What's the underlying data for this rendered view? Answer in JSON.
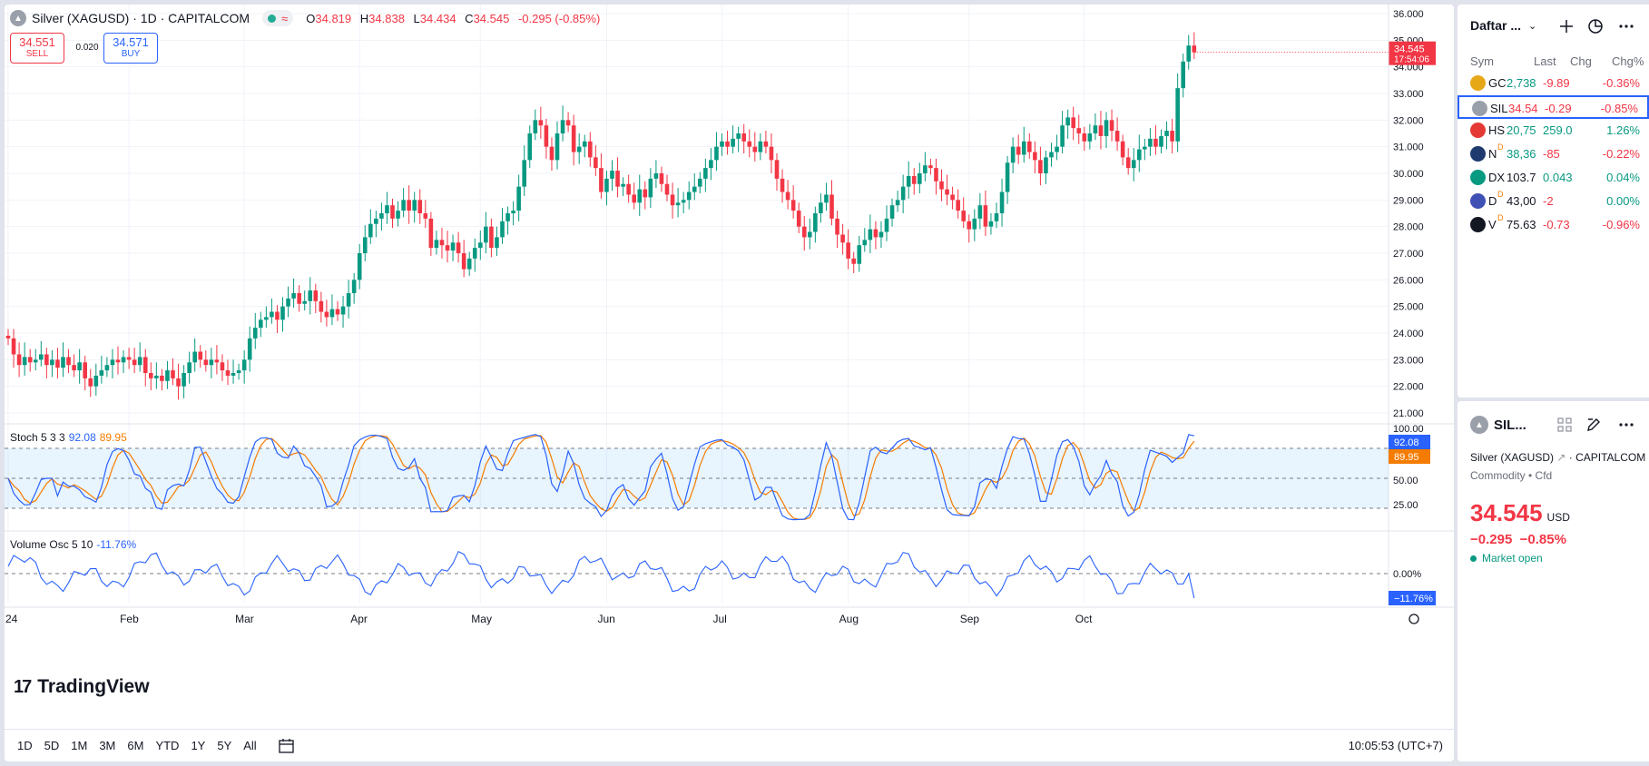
{
  "symbol": {
    "title": "Silver (XAGUSD) · 1D · CAPITALCOM",
    "ohlc": {
      "o_label": "O",
      "o": "34.819",
      "h_label": "H",
      "h": "34.838",
      "l_label": "L",
      "l": "34.434",
      "c_label": "C",
      "c": "34.545",
      "change": "-0.295 (-0.85%)"
    },
    "sell_price": "34.551",
    "sell_label": "SELL",
    "buy_price": "34.571",
    "buy_label": "BUY",
    "spread": "0.020",
    "last_price_tag": "34.545",
    "countdown": "17:54:06"
  },
  "indicators": {
    "stoch_label": "Stoch 5 3 3",
    "stoch_k": "92.08",
    "stoch_d": "89.95",
    "volosc_label": "Volume Osc 5 10",
    "volosc_value": "-11.76%",
    "volosc_zero": "0.00%",
    "volosc_tag": "−11.76%"
  },
  "branding": {
    "logo_text": "TradingView"
  },
  "toolbar": {
    "ranges": [
      "1D",
      "5D",
      "1M",
      "3M",
      "6M",
      "YTD",
      "1Y",
      "5Y",
      "All"
    ],
    "clock": "10:05:53 (UTC+7)"
  },
  "watchlist": {
    "title": "Daftar ...",
    "columns": {
      "sym": "Sym",
      "last": "Last",
      "chg": "Chg",
      "chgp": "Chg%"
    },
    "rows": [
      {
        "sym": "GC",
        "last": "2,738",
        "chg": "-9.89",
        "chgp": "-0.36%",
        "icon_color": "#e6a817",
        "icon": "gold-icon",
        "dir": "up"
      },
      {
        "sym": "SIL",
        "last": "34.54",
        "chg": "-0.29",
        "chgp": "-0.85%",
        "icon_color": "#9aa0aa",
        "icon": "silver-icon",
        "dir": "dn",
        "selected": true
      },
      {
        "sym": "HS",
        "last": "20,75",
        "chg": "259.0",
        "chgp": "1.26%",
        "icon_color": "#e53935",
        "icon": "hang-seng-icon",
        "dir": "up"
      },
      {
        "sym": "N",
        "last": "38,36",
        "chg": "-85",
        "chgp": "-0.22%",
        "icon_color": "#1e3a6e",
        "icon": "nikkei-icon",
        "dir": "up",
        "badge": "D"
      },
      {
        "sym": "DX",
        "last": "103.7",
        "chg": "0.043",
        "chgp": "0.04%",
        "icon_color": "#089981",
        "icon": "dollar-index-icon",
        "dir": "neu"
      },
      {
        "sym": "D",
        "last": "43,00",
        "chg": "-2",
        "chgp": "0.00%",
        "icon_color": "#3f51b5",
        "icon": "us-flag-icon",
        "dir": "neu",
        "badge": "D"
      },
      {
        "sym": "V",
        "last": "75.63",
        "chg": "-0.73",
        "chgp": "-0.96%",
        "icon_color": "#131722",
        "icon": "oil-drop-icon",
        "dir": "neu",
        "badge": "D"
      }
    ]
  },
  "details": {
    "short": "SIL...",
    "name": "Silver (XAGUSD)",
    "exchange": "CAPITALCOM",
    "category": "Commodity • Cfd",
    "price": "34.545",
    "currency": "USD",
    "change": "−0.295",
    "change_pct": "−0.85%",
    "status": "Market open"
  },
  "chart_data": {
    "type": "candlestick",
    "y_range": [
      20.5,
      36.2
    ],
    "price_ticks": [
      "36.000",
      "35.000",
      "34.000",
      "33.000",
      "32.000",
      "31.000",
      "30.000",
      "29.000",
      "28.000",
      "27.000",
      "26.000",
      "25.000",
      "24.000",
      "23.000",
      "22.000",
      "21.000"
    ],
    "stoch_ticks": [
      "100.00",
      "75.00",
      "50.00",
      "25.00"
    ],
    "x_labels": [
      {
        "label": "24",
        "index": 0
      },
      {
        "label": "Feb",
        "index": 22
      },
      {
        "label": "Mar",
        "index": 43
      },
      {
        "label": "Apr",
        "index": 64
      },
      {
        "label": "May",
        "index": 86
      },
      {
        "label": "Jun",
        "index": 109
      },
      {
        "label": "Jul",
        "index": 130
      },
      {
        "label": "Aug",
        "index": 153
      },
      {
        "label": "Sep",
        "index": 175
      },
      {
        "label": "Oct",
        "index": 196
      }
    ],
    "close": [
      23.8,
      23.2,
      22.8,
      23.1,
      22.9,
      23.0,
      23.2,
      22.8,
      23.0,
      22.7,
      23.1,
      22.8,
      22.6,
      22.9,
      22.3,
      22.0,
      22.4,
      22.6,
      22.8,
      23.0,
      22.9,
      23.1,
      23.0,
      22.8,
      23.1,
      22.5,
      22.3,
      22.4,
      22.2,
      22.6,
      22.3,
      22.0,
      22.5,
      22.9,
      23.3,
      23.0,
      22.8,
      23.0,
      22.9,
      22.6,
      22.4,
      22.5,
      22.6,
      23.0,
      23.8,
      24.2,
      24.5,
      24.6,
      24.8,
      24.5,
      25.0,
      25.3,
      25.5,
      25.1,
      25.2,
      25.6,
      25.2,
      24.8,
      24.6,
      24.9,
      24.7,
      25.0,
      25.5,
      26.0,
      27.0,
      27.6,
      28.1,
      28.3,
      28.5,
      28.8,
      28.3,
      28.6,
      29.0,
      28.6,
      29.0,
      28.5,
      28.3,
      27.2,
      27.5,
      27.3,
      27.1,
      27.4,
      27.0,
      26.4,
      26.8,
      27.2,
      27.4,
      28.0,
      27.2,
      27.6,
      28.2,
      28.5,
      28.6,
      29.5,
      30.5,
      31.5,
      32.0,
      31.8,
      31.0,
      30.5,
      31.5,
      32.0,
      31.8,
      30.8,
      31.0,
      31.2,
      30.6,
      30.2,
      29.3,
      29.8,
      30.1,
      29.5,
      29.6,
      29.2,
      28.9,
      29.4,
      29.1,
      29.8,
      30.0,
      29.6,
      29.2,
      28.8,
      28.9,
      29.0,
      29.3,
      29.5,
      29.8,
      30.2,
      30.5,
      31.0,
      31.2,
      31.0,
      31.3,
      31.5,
      31.2,
      31.0,
      30.8,
      31.2,
      31.0,
      30.5,
      29.8,
      29.3,
      29.0,
      28.6,
      28.0,
      27.6,
      27.8,
      28.5,
      28.9,
      29.2,
      28.3,
      27.7,
      27.4,
      26.8,
      26.6,
      27.3,
      27.5,
      27.9,
      27.6,
      27.8,
      28.3,
      28.8,
      29.0,
      29.5,
      29.9,
      29.6,
      30.0,
      30.3,
      30.2,
      29.7,
      29.4,
      29.2,
      29.0,
      28.6,
      28.2,
      27.9,
      28.3,
      28.8,
      28.0,
      28.2,
      28.5,
      29.3,
      30.4,
      31.0,
      30.7,
      31.2,
      30.8,
      30.5,
      30.0,
      30.6,
      30.8,
      31.0,
      31.8,
      32.1,
      31.7,
      31.5,
      31.2,
      31.5,
      31.8,
      31.4,
      32.0,
      31.6,
      31.2,
      30.6,
      30.2,
      30.5,
      30.9,
      31.0,
      31.3,
      31.0,
      31.4,
      31.6,
      31.2,
      33.2,
      34.2,
      34.8,
      34.545
    ]
  }
}
